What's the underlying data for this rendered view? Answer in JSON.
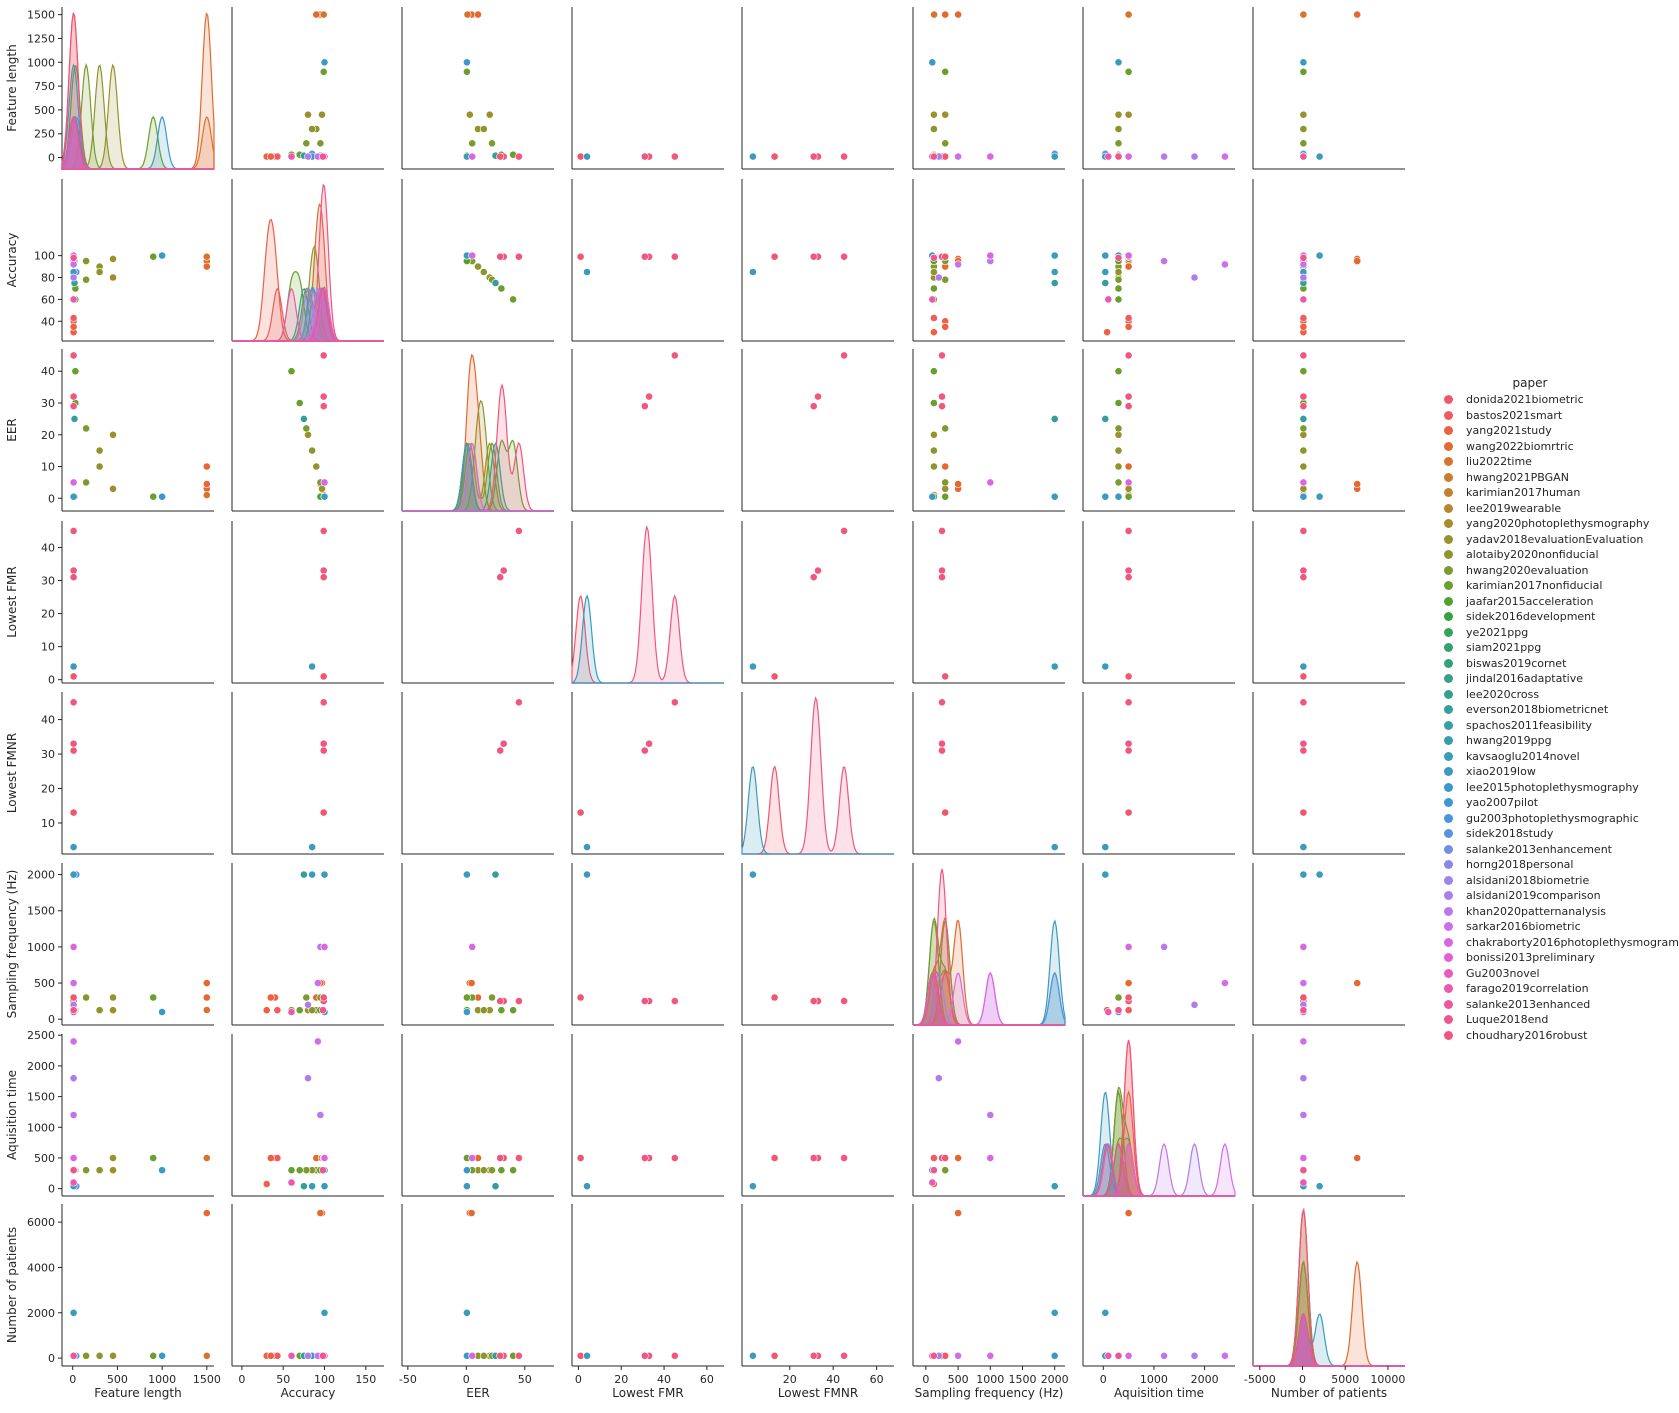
{
  "chart_data": {
    "type": "scatter",
    "variables": [
      "Feature length",
      "Accuracy",
      "EER",
      "Lowest FMR",
      "Lowest FMNR",
      "Sampling frequency (Hz)",
      "Aquisition time",
      "Number of patients"
    ],
    "axes": {
      "Feature length": {
        "lim": [
          -120,
          1580
        ],
        "ticks": [
          0,
          500,
          1000,
          1500
        ],
        "yticks": [
          0,
          250,
          500,
          750,
          1000,
          1250,
          1500
        ]
      },
      "Accuracy": {
        "lim": [
          22,
          170
        ],
        "ticks": [
          0,
          50,
          100,
          150
        ],
        "yticks": [
          40,
          60,
          80,
          100
        ],
        "xlim": [
          -12,
          172
        ]
      },
      "EER": {
        "lim": [
          -4,
          47
        ],
        "ticks": [
          -50,
          0,
          50
        ],
        "yticks": [
          0,
          10,
          20,
          30,
          40
        ],
        "xlim": [
          -55,
          75
        ]
      },
      "Lowest FMR": {
        "lim": [
          -1,
          48
        ],
        "ticks": [
          0,
          20,
          40,
          60
        ],
        "yticks": [
          0,
          10,
          20,
          30,
          40
        ],
        "xlim": [
          -3,
          68
        ]
      },
      "Lowest FMNR": {
        "lim": [
          1,
          48
        ],
        "ticks": [
          20,
          40,
          60
        ],
        "yticks": [
          10,
          20,
          30,
          40
        ],
        "xlim": [
          -2,
          68
        ]
      },
      "Sampling frequency (Hz)": {
        "lim": [
          -80,
          2160
        ],
        "ticks": [
          0,
          500,
          1000,
          1500,
          2000
        ],
        "yticks": [
          0,
          500,
          1000,
          1500,
          2000
        ],
        "xlim": [
          -200,
          2160
        ]
      },
      "Aquisition time": {
        "lim": [
          -120,
          2520
        ],
        "ticks": [
          0,
          1000,
          2000
        ],
        "yticks": [
          0,
          500,
          1000,
          1500,
          2000,
          2500
        ],
        "xlim": [
          -400,
          2600
        ]
      },
      "Number of patients": {
        "lim": [
          -350,
          6800
        ],
        "ticks": [
          -5000,
          0,
          5000,
          10000
        ],
        "yticks": [
          0,
          2000,
          4000,
          6000
        ],
        "xlim": [
          -5800,
          12000
        ]
      }
    },
    "hue": "paper",
    "legend": {
      "title": "paper",
      "placement": "right",
      "entries": [
        {
          "name": "donida2021biometric",
          "color": "#f0576f"
        },
        {
          "name": "bastos2021smart",
          "color": "#ef5b5e"
        },
        {
          "name": "yang2021study",
          "color": "#ed6043"
        },
        {
          "name": "wang2022biomrtric",
          "color": "#e4692f"
        },
        {
          "name": "liu2022time",
          "color": "#d8732e"
        },
        {
          "name": "hwang2021PBGAN",
          "color": "#cc7a2e"
        },
        {
          "name": "karimian2017human",
          "color": "#c0812e"
        },
        {
          "name": "lee2019wearable",
          "color": "#b4872d"
        },
        {
          "name": "yang2020photoplethysmography",
          "color": "#a78c2d"
        },
        {
          "name": "yadav2018evaluationEvaluation",
          "color": "#9a912d"
        },
        {
          "name": "alotaiby2020nonfiducial",
          "color": "#8c962d"
        },
        {
          "name": "hwang2020evaluation",
          "color": "#7c9a2d"
        },
        {
          "name": "karimian2017nonfiducial",
          "color": "#6a9e2d"
        },
        {
          "name": "jaafar2015acceleration",
          "color": "#52a12d"
        },
        {
          "name": "sidek2016development",
          "color": "#34a33f"
        },
        {
          "name": "ye2021ppg",
          "color": "#32a25c"
        },
        {
          "name": "siam2021ppg",
          "color": "#33a16d"
        },
        {
          "name": "biswas2019cornet",
          "color": "#34a07b"
        },
        {
          "name": "jindal2016adaptative",
          "color": "#35a087"
        },
        {
          "name": "lee2020cross",
          "color": "#359f91"
        },
        {
          "name": "everson2018biometricnet",
          "color": "#369e9a"
        },
        {
          "name": "spachos2011feasibility",
          "color": "#379ea3"
        },
        {
          "name": "hwang2019ppg",
          "color": "#389dab"
        },
        {
          "name": "kavsaoglu2014novel",
          "color": "#389cb4"
        },
        {
          "name": "xiao2019low",
          "color": "#3a9bbd"
        },
        {
          "name": "lee2015photoplethysmography",
          "color": "#3b99c7"
        },
        {
          "name": "yao2007pilot",
          "color": "#3d97d2"
        },
        {
          "name": "gu2003photoplethysmographic",
          "color": "#4595df"
        },
        {
          "name": "sidek2018study",
          "color": "#5a92e6"
        },
        {
          "name": "salanke2013enhancement",
          "color": "#718ee9"
        },
        {
          "name": "horng2018personal",
          "color": "#8789ea"
        },
        {
          "name": "alsidani2018biometrie",
          "color": "#9b84ea"
        },
        {
          "name": "alsidani2019comparison",
          "color": "#ad7eea"
        },
        {
          "name": "khan2020patternanalysis",
          "color": "#bd77e9"
        },
        {
          "name": "sarkar2016biometric",
          "color": "#cd6fe8"
        },
        {
          "name": "chakraborty2016photoplethysmogram",
          "color": "#db66e2"
        },
        {
          "name": "bonissi2013preliminary",
          "color": "#e35fd3"
        },
        {
          "name": "Gu2003novel",
          "color": "#e95ac3"
        },
        {
          "name": "farago2019correlation",
          "color": "#ec58b1"
        },
        {
          "name": "salanke2013enhanced",
          "color": "#ee579f"
        },
        {
          "name": "Luque2018end",
          "color": "#ef568e"
        },
        {
          "name": "choudhary2016robust",
          "color": "#f0567e"
        }
      ]
    },
    "points": [
      {
        "series": "wang2022biomrtric",
        "Feature length": 1500,
        "Accuracy": 97,
        "EER": 3,
        "Sampling frequency (Hz)": 500,
        "Aquisition time": 500,
        "Number of patients": 6400
      },
      {
        "series": "wang2022biomrtric",
        "Feature length": 1500,
        "Accuracy": 95,
        "EER": 4.5,
        "Sampling frequency (Hz)": 500,
        "Aquisition time": 500,
        "Number of patients": 6400
      },
      {
        "series": "wang2022biomrtric",
        "Feature length": 1500,
        "Accuracy": 90,
        "EER": 10,
        "Sampling frequency (Hz)": 300,
        "Aquisition time": 500,
        "Number of patients": 100
      },
      {
        "series": "liu2022time",
        "Feature length": 1500,
        "Accuracy": 99,
        "EER": 1,
        "Sampling frequency (Hz)": 128,
        "Aquisition time": 500,
        "Number of patients": 100
      },
      {
        "series": "yang2021study",
        "Feature length": 10,
        "Accuracy": 40,
        "Sampling frequency (Hz)": 300,
        "Aquisition time": 500,
        "Number of patients": 100
      },
      {
        "series": "yang2021study",
        "Feature length": 10,
        "Accuracy": 30,
        "Sampling frequency (Hz)": 125,
        "Aquisition time": 75,
        "Number of patients": 100
      },
      {
        "series": "bastos2021smart",
        "Feature length": 10,
        "Accuracy": 43,
        "Sampling frequency (Hz)": 125,
        "Aquisition time": 500,
        "Number of patients": 100
      },
      {
        "series": "yang2021study",
        "Feature length": 10,
        "Accuracy": 35,
        "Sampling frequency (Hz)": 300,
        "Aquisition time": 500,
        "Number of patients": 100
      },
      {
        "series": "yadav2018evaluationEvaluation",
        "Feature length": 450,
        "Accuracy": 97,
        "EER": 3,
        "Sampling frequency (Hz)": 300,
        "Aquisition time": 500,
        "Number of patients": 100
      },
      {
        "series": "yadav2018evaluationEvaluation",
        "Feature length": 450,
        "Accuracy": 80,
        "EER": 20,
        "Sampling frequency (Hz)": 125,
        "Aquisition time": 300,
        "Number of patients": 100
      },
      {
        "series": "alotaiby2020nonfiducial",
        "Feature length": 300,
        "Accuracy": 90,
        "EER": 10,
        "Sampling frequency (Hz)": 125,
        "Aquisition time": 300,
        "Number of patients": 100
      },
      {
        "series": "alotaiby2020nonfiducial",
        "Feature length": 300,
        "Accuracy": 85,
        "EER": 15,
        "Sampling frequency (Hz)": 125,
        "Aquisition time": 300,
        "Number of patients": 100
      },
      {
        "series": "hwang2020evaluation",
        "Feature length": 150,
        "Accuracy": 78,
        "EER": 22,
        "Sampling frequency (Hz)": 300,
        "Aquisition time": 300,
        "Number of patients": 100
      },
      {
        "series": "hwang2020evaluation",
        "Feature length": 150,
        "Accuracy": 95,
        "EER": 5,
        "Sampling frequency (Hz)": 300,
        "Aquisition time": 300,
        "Number of patients": 100
      },
      {
        "series": "karimian2017nonfiducial",
        "Feature length": 900,
        "Accuracy": 99,
        "EER": 0.5,
        "Sampling frequency (Hz)": 300,
        "Aquisition time": 500,
        "Number of patients": 100
      },
      {
        "series": "karimian2017nonfiducial",
        "Feature length": 30,
        "Accuracy": 60,
        "EER": 40,
        "Sampling frequency (Hz)": 125,
        "Aquisition time": 300,
        "Number of patients": 100
      },
      {
        "series": "karimian2017nonfiducial",
        "Feature length": 30,
        "Accuracy": 70,
        "EER": 30,
        "Sampling frequency (Hz)": 125,
        "Aquisition time": 300,
        "Number of patients": 100
      },
      {
        "series": "jaafar2015acceleration",
        "Feature length": 20,
        "Accuracy": 95,
        "EER": 0.5,
        "Sampling frequency (Hz)": 125,
        "Aquisition time": 300,
        "Number of patients": 100
      },
      {
        "series": "lee2015photoplethysmography",
        "Feature length": 1000,
        "Accuracy": 100,
        "EER": 0.5,
        "Sampling frequency (Hz)": 100,
        "Aquisition time": 300,
        "Number of patients": 100
      },
      {
        "series": "everson2018biometricnet",
        "Feature length": 20,
        "Accuracy": 75,
        "EER": 25,
        "Sampling frequency (Hz)": 2000,
        "Aquisition time": 40,
        "Number of patients": 100
      },
      {
        "series": "xiao2019low",
        "Feature length": 10,
        "Accuracy": 100,
        "EER": 0.5,
        "Sampling frequency (Hz)": 2000,
        "Aquisition time": 40,
        "Number of patients": 2000
      },
      {
        "series": "sidek2018study",
        "Feature length": 40,
        "Accuracy": 85,
        "Sampling frequency (Hz)": 2000,
        "Aquisition time": 40,
        "Number of patients": 100
      },
      {
        "series": "choudhary2016robust",
        "Feature length": 10,
        "Accuracy": 99,
        "EER": 45,
        "Lowest FMR": 45,
        "Lowest FMNR": 45,
        "Sampling frequency (Hz)": 250,
        "Aquisition time": 500,
        "Number of patients": 100
      },
      {
        "series": "choudhary2016robust",
        "Feature length": 10,
        "Accuracy": 99,
        "EER": 32,
        "Lowest FMR": 33,
        "Lowest FMNR": 33,
        "Sampling frequency (Hz)": 250,
        "Aquisition time": 500,
        "Number of patients": 100
      },
      {
        "series": "choudhary2016robust",
        "Feature length": 10,
        "Accuracy": 99,
        "EER": 29,
        "Lowest FMR": 31,
        "Lowest FMNR": 31,
        "Sampling frequency (Hz)": 250,
        "Aquisition time": 500,
        "Number of patients": 100
      },
      {
        "series": "donida2021biometric",
        "Feature length": 10,
        "Accuracy": 99,
        "Lowest FMR": 1,
        "Lowest FMNR": 13,
        "Sampling frequency (Hz)": 300,
        "Aquisition time": 500,
        "Number of patients": 100
      },
      {
        "series": "xiao2019low",
        "Feature length": 10,
        "Accuracy": 85,
        "Lowest FMR": 4,
        "Lowest FMNR": 3,
        "Sampling frequency (Hz)": 2000,
        "Aquisition time": 40,
        "Number of patients": 100
      },
      {
        "series": "khan2020patternanalysis",
        "Feature length": 10,
        "Accuracy": 95,
        "Sampling frequency (Hz)": 1000,
        "Aquisition time": 1200,
        "Number of patients": 100
      },
      {
        "series": "sarkar2016biometric",
        "Feature length": 10,
        "Accuracy": 92,
        "Sampling frequency (Hz)": 500,
        "Aquisition time": 2400,
        "Number of patients": 100
      },
      {
        "series": "alsidani2019comparison",
        "Feature length": 10,
        "Accuracy": 80,
        "Sampling frequency (Hz)": 200,
        "Aquisition time": 1800,
        "Number of patients": 100
      },
      {
        "series": "chakraborty2016photoplethysmogram",
        "Feature length": 10,
        "Accuracy": 100,
        "EER": 5,
        "Sampling frequency (Hz)": 1000,
        "Aquisition time": 500,
        "Number of patients": 100
      },
      {
        "series": "farago2019correlation",
        "Feature length": 10,
        "Accuracy": 60,
        "Sampling frequency (Hz)": 100,
        "Aquisition time": 100,
        "Number of patients": 100
      },
      {
        "series": "Luque2018end",
        "Feature length": 10,
        "Accuracy": 98,
        "Sampling frequency (Hz)": 125,
        "Aquisition time": 300,
        "Number of patients": 100
      }
    ]
  }
}
